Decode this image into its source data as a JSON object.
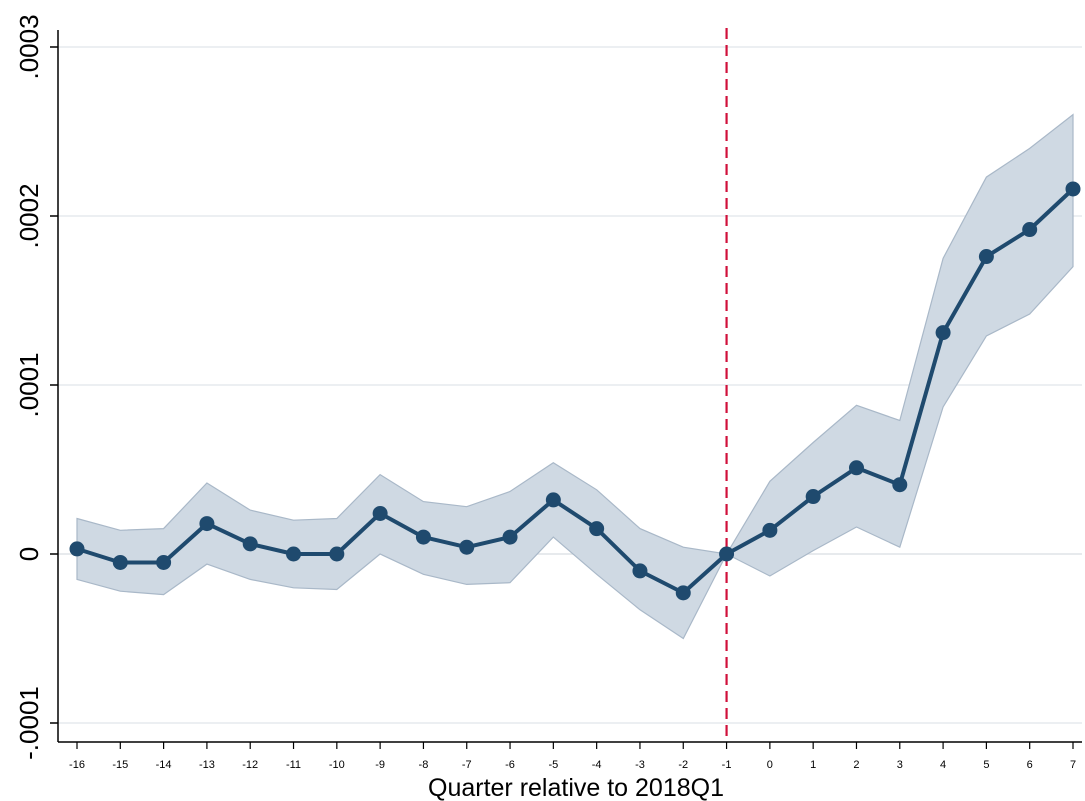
{
  "chart_data": {
    "type": "line",
    "title": "",
    "xlabel": "Quarter relative to 2018Q1",
    "ylabel": "",
    "x": [
      -16,
      -15,
      -14,
      -13,
      -12,
      -11,
      -10,
      -9,
      -8,
      -7,
      -6,
      -5,
      -4,
      -3,
      -2,
      -1,
      0,
      1,
      2,
      3,
      4,
      5,
      6,
      7
    ],
    "ylim": [
      -0.0001,
      0.0003
    ],
    "yticks": [
      -0.0001,
      0,
      0.0001,
      0.0002,
      0.0003
    ],
    "ytick_labels": [
      "-.0001",
      "0",
      ".0001",
      ".0002",
      ".0003"
    ],
    "xtick_labels": [
      "-16",
      "-15",
      "-14",
      "-13",
      "-12",
      "-11",
      "-10",
      "-9",
      "-8",
      "-7",
      "-6",
      "-5",
      "-4",
      "-3",
      "-2",
      "-1",
      "0",
      "1",
      "2",
      "3",
      "4",
      "5",
      "6",
      "7"
    ],
    "series": [
      {
        "values": [
          3e-06,
          -5e-06,
          -5e-06,
          1.8e-05,
          6e-06,
          0.0,
          0.0,
          2.4e-05,
          1e-05,
          4e-06,
          1e-05,
          3.2e-05,
          1.5e-05,
          -1e-05,
          -2.3e-05,
          0.0,
          1.4e-05,
          3.4e-05,
          5.1e-05,
          4.1e-05,
          0.000131,
          0.000176,
          0.000192,
          0.000216
        ],
        "ci_lower": [
          -1.5e-05,
          -2.2e-05,
          -2.4e-05,
          -6e-06,
          -1.5e-05,
          -2e-05,
          -2.1e-05,
          0.0,
          -1.2e-05,
          -1.8e-05,
          -1.7e-05,
          1e-05,
          -1.2e-05,
          -3.3e-05,
          -5e-05,
          0.0,
          -1.3e-05,
          2e-06,
          1.6e-05,
          4e-06,
          8.7e-05,
          0.000129,
          0.000142,
          0.00017
        ],
        "ci_upper": [
          2.1e-05,
          1.4e-05,
          1.5e-05,
          4.2e-05,
          2.6e-05,
          2e-05,
          2.1e-05,
          4.7e-05,
          3.1e-05,
          2.8e-05,
          3.7e-05,
          5.4e-05,
          3.8e-05,
          1.5e-05,
          4e-06,
          0.0,
          4.3e-05,
          6.6e-05,
          8.8e-05,
          7.9e-05,
          0.000175,
          0.000223,
          0.00024,
          0.00026
        ]
      }
    ],
    "reference_line_x": -1,
    "grid": true,
    "colors": {
      "line": "#1f4a6e",
      "ci_fill": "#cfd9e3",
      "ci_edge": "#a9b8c8",
      "reference": "#d0103a",
      "grid": "#e6eaee",
      "zero_line": "#dfe3e7",
      "axis": "#000000"
    }
  }
}
